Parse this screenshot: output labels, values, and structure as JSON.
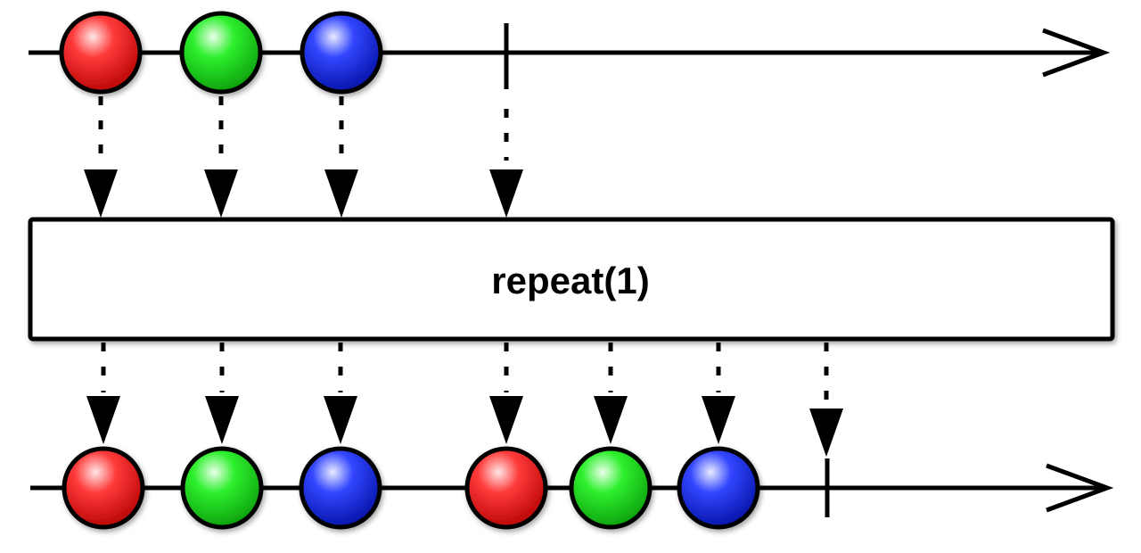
{
  "operator": {
    "label": "repeat(1)"
  },
  "colors": {
    "red": "#ff2020",
    "green": "#20ee20",
    "blue": "#2030ff",
    "line": "#000000",
    "box_fill": "#ffffff"
  },
  "source_stream": {
    "items": [
      {
        "color": "red"
      },
      {
        "color": "green"
      },
      {
        "color": "blue"
      }
    ],
    "completes": true
  },
  "result_stream": {
    "items": [
      {
        "color": "red"
      },
      {
        "color": "green"
      },
      {
        "color": "blue"
      },
      {
        "color": "red"
      },
      {
        "color": "green"
      },
      {
        "color": "blue"
      }
    ],
    "completes": true
  }
}
